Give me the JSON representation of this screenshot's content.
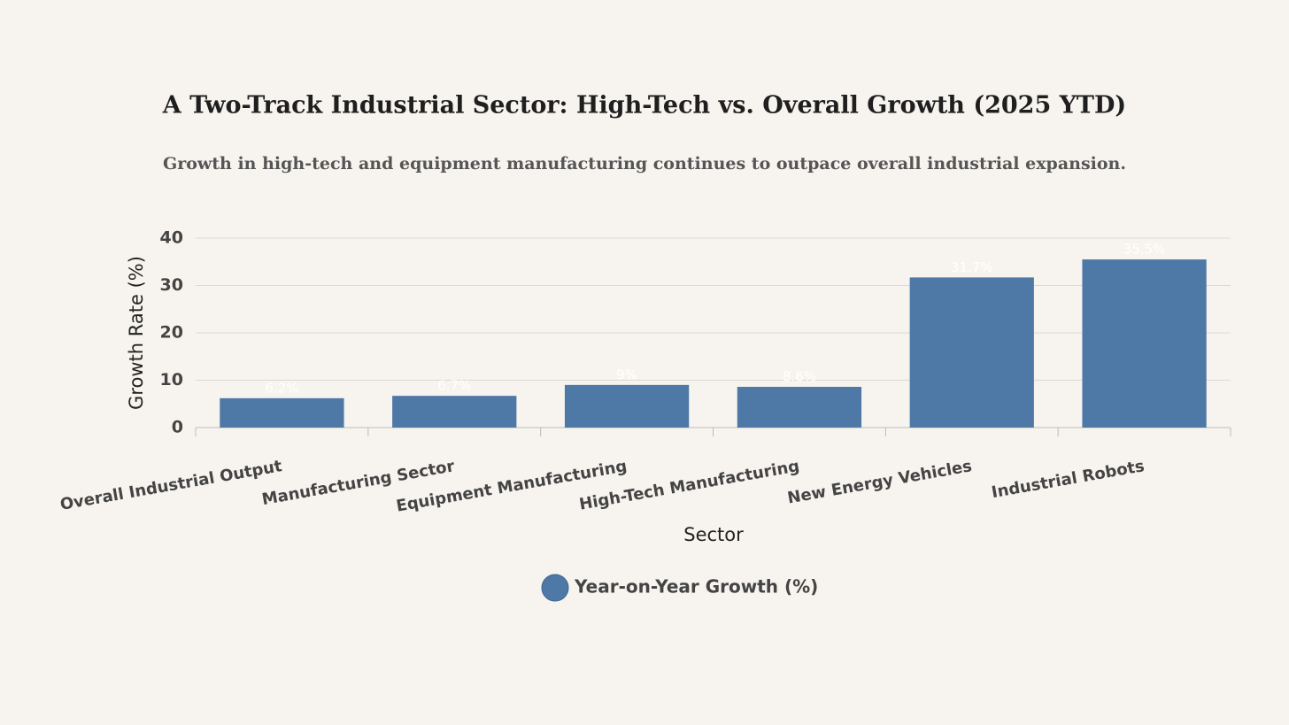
{
  "chart_data": {
    "type": "bar",
    "title": "A Two-Track Industrial Sector: High-Tech vs. Overall Growth (2025 YTD)",
    "subtitle": "Growth in high-tech and equipment manufacturing continues to outpace overall industrial expansion.",
    "x_label": "Sector",
    "y_label": "Growth Rate (%)",
    "categories": [
      "Overall Industrial Output",
      "Manufacturing Sector",
      "Equipment Manufacturing",
      "High-Tech Manufacturing",
      "New Energy Vehicles",
      "Industrial Robots"
    ],
    "series": [
      {
        "name": "Year-on-Year Growth (%)",
        "color": "#4e79a7",
        "values": [
          6.2,
          6.7,
          9,
          8.6,
          31.7,
          35.5
        ],
        "value_labels": [
          "6.2%",
          "6.7%",
          "9%",
          "8.6%",
          "31.7%",
          "35.5%"
        ]
      }
    ],
    "ylim": [
      0,
      40
    ],
    "yticks": [
      0,
      10,
      20,
      30,
      40
    ],
    "grid": true,
    "legend": "bottom"
  }
}
